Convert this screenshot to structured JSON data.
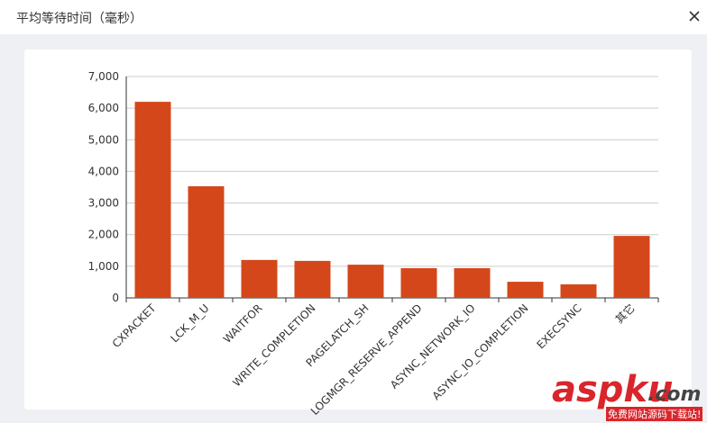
{
  "header": {
    "title": "平均等待时间（毫秒）"
  },
  "chart_data": {
    "type": "bar",
    "categories": [
      "CXPACKET",
      "LCK_M_U",
      "WAITFOR",
      "WRITE_COMPLETION",
      "PAGELATCH_SH",
      "LOGMGR_RESERVE_APPEND",
      "ASYNC_NETWORK_IO",
      "ASYNC_IO_COMPLETION",
      "EXECSYNC",
      "其它"
    ],
    "values": [
      6200,
      3530,
      1200,
      1170,
      1050,
      940,
      940,
      510,
      430,
      1960
    ],
    "color": "#d4471a",
    "ylim": [
      0,
      7000
    ],
    "yticks": [
      0,
      {
        "value": 1000,
        "label": "1,000"
      },
      {
        "value": 2000,
        "label": "2,000"
      },
      {
        "value": 3000,
        "label": "3,000"
      },
      {
        "value": 4000,
        "label": "4,000"
      },
      {
        "value": 5000,
        "label": "5,000"
      },
      {
        "value": 6000,
        "label": "6,000"
      },
      {
        "value": 7000,
        "label": "7,000"
      }
    ],
    "grid": true
  },
  "watermark": {
    "brand": "aspku",
    "domain": ".com",
    "tagline": "免费网站源码下载站!"
  }
}
